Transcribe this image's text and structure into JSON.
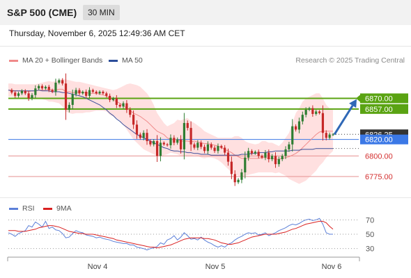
{
  "header": {
    "symbol": "S&P 500 (CME)",
    "timeframe": "30 MIN"
  },
  "timestamp": "Thursday, November 6, 2025 12:49:36 AM CET",
  "credit": "Research © 2025 Trading Central",
  "colors": {
    "bollinger": "#f08a8a",
    "bollinger_fill": "#ffe0e0",
    "ma50": "#3a4e9a",
    "up_candle": "#2e7d32",
    "down_candle": "#c62828",
    "resistance": "#5aa312",
    "support": "#e48f8f",
    "pivot": "#3b78e6",
    "rsi": "#5b7fd8",
    "rsi_ma": "#d92020"
  },
  "chart_data": [
    {
      "type": "candlestick",
      "title": "",
      "legend": [
        {
          "name": "MA 20 + Bollinger Bands",
          "color": "#f08a8a"
        },
        {
          "name": "MA 50",
          "color": "#2b4d9a"
        }
      ],
      "x_labels": [
        "Nov 4",
        "Nov 5",
        "Nov 6"
      ],
      "y_range": [
        6753,
        6905
      ],
      "levels": [
        {
          "value": 6870.0,
          "label": "6870.00",
          "kind": "resistance"
        },
        {
          "value": 6857.0,
          "label": "6857.00",
          "kind": "resistance"
        },
        {
          "value": 6820.0,
          "label": "6820.00",
          "kind": "pivot"
        },
        {
          "value": 6800.0,
          "label": "6800.00",
          "kind": "support"
        },
        {
          "value": 6775.0,
          "label": "6775.00",
          "kind": "support"
        }
      ],
      "current_price": {
        "value": 6826.25,
        "label": "6826.25"
      },
      "close_path": [
        6880,
        6877,
        6873,
        6876,
        6879,
        6876,
        6870,
        6874,
        6882,
        6885,
        6882,
        6884,
        6880,
        6878,
        6889,
        6892,
        6888,
        6856,
        6862,
        6875,
        6880,
        6876,
        6878,
        6873,
        6880,
        6878,
        6876,
        6878,
        6876,
        6873,
        6868,
        6870,
        6862,
        6860,
        6864,
        6856,
        6850,
        6838,
        6826,
        6822,
        6828,
        6818,
        6814,
        6818,
        6800,
        6816,
        6814,
        6813,
        6822,
        6816,
        6820,
        6808,
        6840,
        6834,
        6814,
        6810,
        6816,
        6811,
        6806,
        6814,
        6810,
        6806,
        6812,
        6810,
        6804,
        6793,
        6778,
        6768,
        6771,
        6780,
        6798,
        6806,
        6803,
        6805,
        6800,
        6798,
        6804,
        6796,
        6800,
        6790,
        6796,
        6800,
        6808,
        6814,
        6836,
        6832,
        6842,
        6850,
        6856,
        6858,
        6851,
        6854,
        6852,
        6828,
        6822,
        6826,
        6826
      ],
      "ma20_path": [
        6880,
        6880,
        6879,
        6879,
        6879,
        6879,
        6878,
        6879,
        6879,
        6880,
        6880,
        6880,
        6881,
        6880,
        6880,
        6881,
        6881,
        6878,
        6878,
        6877,
        6877,
        6878,
        6877,
        6877,
        6876,
        6876,
        6876,
        6875,
        6874,
        6873,
        6870,
        6868,
        6866,
        6864,
        6861,
        6858,
        6855,
        6852,
        6850,
        6848,
        6845,
        6842,
        6838,
        6834,
        6830,
        6828,
        6826,
        6822,
        6820,
        6820,
        6820,
        6818,
        6818,
        6818,
        6817,
        6818,
        6817,
        6816,
        6815,
        6815,
        6814,
        6813,
        6812,
        6810,
        6808,
        6806,
        6804,
        6801,
        6799,
        6797,
        6797,
        6797,
        6797,
        6797,
        6797,
        6798,
        6798,
        6797,
        6797,
        6796,
        6796,
        6797,
        6798,
        6799,
        6801,
        6803,
        6806,
        6810,
        6814,
        6818,
        6822,
        6826,
        6829,
        6830,
        6830,
        6830,
        6830
      ],
      "bb_upper_path": [
        6888,
        6888,
        6887,
        6887,
        6887,
        6887,
        6887,
        6887,
        6887,
        6888,
        6889,
        6890,
        6891,
        6890,
        6891,
        6892,
        6894,
        6893,
        6892,
        6891,
        6890,
        6890,
        6889,
        6888,
        6887,
        6886,
        6885,
        6884,
        6883,
        6882,
        6881,
        6880,
        6881,
        6883,
        6885,
        6887,
        6888,
        6887,
        6886,
        6884,
        6880,
        6876,
        6870,
        6862,
        6852,
        6846,
        6840,
        6836,
        6838,
        6840,
        6844,
        6843,
        6845,
        6846,
        6842,
        6840,
        6837,
        6834,
        6830,
        6828,
        6826,
        6824,
        6822,
        6822,
        6822,
        6822,
        6822,
        6824,
        6824,
        6822,
        6818,
        6816,
        6815,
        6814,
        6815,
        6818,
        6818,
        6816,
        6816,
        6814,
        6812,
        6816,
        6822,
        6828,
        6840,
        6852,
        6858,
        6866,
        6870,
        6872,
        6874,
        6876,
        6876,
        6870,
        6862,
        6858,
        6856
      ],
      "bb_lower_path": [
        6872,
        6872,
        6871,
        6871,
        6871,
        6870,
        6869,
        6869,
        6870,
        6870,
        6869,
        6868,
        6866,
        6866,
        6865,
        6864,
        6860,
        6854,
        6852,
        6851,
        6852,
        6852,
        6852,
        6853,
        6853,
        6854,
        6855,
        6855,
        6855,
        6854,
        6850,
        6848,
        6846,
        6843,
        6838,
        6832,
        6826,
        6820,
        6816,
        6812,
        6808,
        6806,
        6804,
        6802,
        6800,
        6800,
        6801,
        6802,
        6804,
        6803,
        6802,
        6800,
        6800,
        6800,
        6800,
        6801,
        6800,
        6798,
        6797,
        6798,
        6798,
        6797,
        6795,
        6792,
        6788,
        6784,
        6780,
        6778,
        6776,
        6775,
        6776,
        6777,
        6778,
        6779,
        6780,
        6780,
        6780,
        6780,
        6780,
        6779,
        6780,
        6778,
        6776,
        6772,
        6770,
        6768,
        6766,
        6768,
        6770,
        6774,
        6778,
        6782,
        6788,
        6792,
        6798,
        6802,
        6806
      ],
      "ma50_path": [
        6880,
        6879,
        6879,
        6879,
        6879,
        6879,
        6879,
        6879,
        6879,
        6880,
        6879,
        6879,
        6879,
        6878,
        6878,
        6878,
        6877,
        6877,
        6876,
        6875,
        6874,
        6873,
        6872,
        6870,
        6868,
        6866,
        6864,
        6862,
        6859,
        6856,
        6852,
        6849,
        6845,
        6842,
        6838,
        6835,
        6832,
        6829,
        6826,
        6824,
        6822,
        6820,
        6818,
        6816,
        6814,
        6812,
        6810,
        6809,
        6807,
        6806,
        6806,
        6805,
        6805,
        6804,
        6804,
        6803,
        6803,
        6802,
        6802,
        6802,
        6801,
        6801,
        6801,
        6801,
        6801,
        6801,
        6801,
        6801,
        6801,
        6802,
        6802,
        6802,
        6803,
        6803,
        6804,
        6804,
        6804,
        6805,
        6805,
        6806,
        6806,
        6806,
        6806,
        6806,
        6807,
        6807,
        6807,
        6808,
        6808,
        6808,
        6808,
        6809,
        6809,
        6809,
        6809,
        6809,
        6809
      ],
      "forecast_arrow": {
        "from": 6826,
        "to": 6869
      }
    },
    {
      "type": "line",
      "title": "",
      "legend": [
        {
          "name": "RSI",
          "color": "#5b7fd8"
        },
        {
          "name": "9MA",
          "color": "#d92020"
        }
      ],
      "y_range": [
        20,
        80
      ],
      "y_ticks": [
        70,
        50,
        30
      ],
      "rsi": [
        52,
        50,
        47,
        51,
        53,
        55,
        62,
        60,
        67,
        64,
        60,
        68,
        58,
        60,
        56,
        55,
        51,
        45,
        46,
        51,
        55,
        53,
        52,
        49,
        48,
        47,
        45,
        46,
        44,
        43,
        42,
        40,
        39,
        38,
        37,
        37,
        35,
        35,
        32,
        31,
        30,
        28,
        30,
        31,
        33,
        38,
        36,
        42,
        44,
        48,
        42,
        46,
        52,
        48,
        43,
        44,
        42,
        46,
        42,
        39,
        37,
        34,
        32,
        34,
        32,
        36,
        38,
        42,
        45,
        47,
        50,
        52,
        51,
        52,
        49,
        50,
        52,
        48,
        50,
        52,
        55,
        57,
        59,
        62,
        64,
        63,
        65,
        68,
        70,
        71,
        69,
        70,
        72,
        64,
        52,
        50,
        50
      ],
      "rsi_ma": [
        55,
        55,
        55,
        54,
        54,
        54,
        55,
        56,
        57,
        59,
        60,
        61,
        62,
        62,
        61,
        60,
        58,
        56,
        54,
        53,
        52,
        51,
        51,
        50,
        50,
        50,
        49,
        48,
        47,
        46,
        45,
        44,
        42,
        41,
        40,
        39,
        38,
        37,
        36,
        35,
        34,
        33,
        32,
        32,
        31,
        32,
        33,
        34,
        35,
        37,
        39,
        41,
        43,
        44,
        45,
        45,
        45,
        45,
        44,
        44,
        43,
        42,
        40,
        38,
        37,
        36,
        36,
        37,
        38,
        40,
        42,
        44,
        46,
        47,
        48,
        49,
        50,
        50,
        50,
        50,
        51,
        52,
        53,
        55,
        57,
        58,
        60,
        62,
        64,
        65,
        66,
        67,
        68,
        68,
        66,
        61,
        57
      ]
    }
  ]
}
